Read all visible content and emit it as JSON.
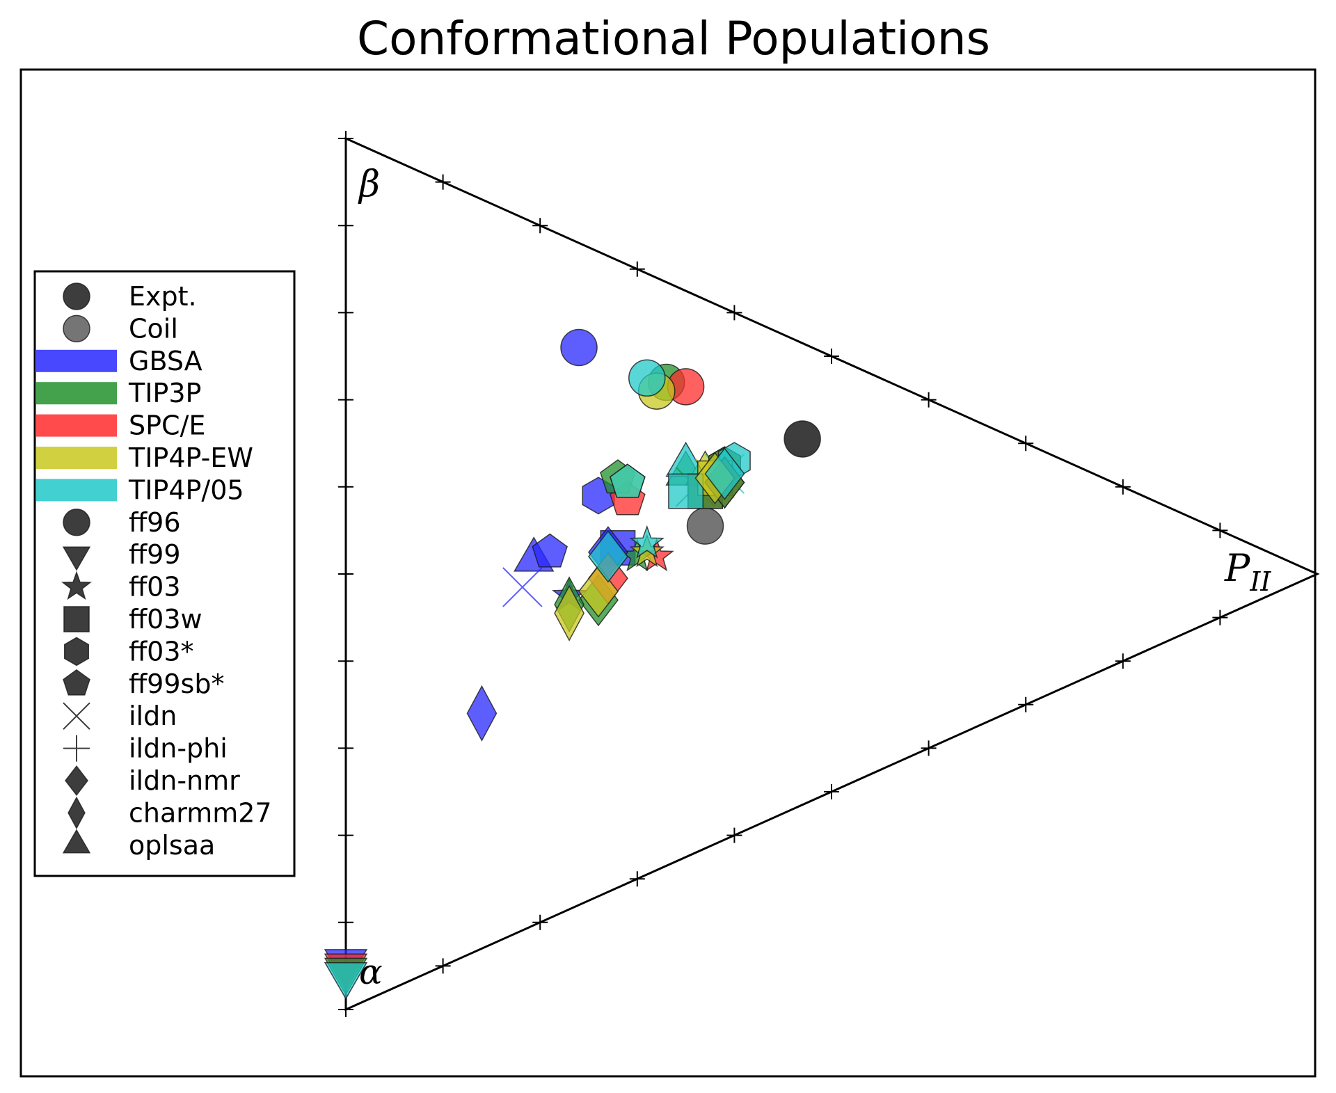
{
  "chart_data": {
    "type": "scatter",
    "subtype": "ternary",
    "title": "Conformational Populations",
    "corners": {
      "beta": "β",
      "alpha": "α",
      "pii": "P",
      "pii_sub": "II"
    },
    "ticks_per_edge": 10,
    "grid": false,
    "legend_position": "left",
    "colors": {
      "expt": "#333333",
      "coil": "#6e6e6e",
      "GBSA": "#2828ff",
      "TIP3P": "#22922c",
      "SPC/E": "#ff2b2b",
      "TIP4P-EW": "#c8c820",
      "TIP4P/05": "#22c8c8"
    },
    "legend": [
      {
        "label": "Expt.",
        "kind": "marker",
        "marker": "circle",
        "color": "#333333"
      },
      {
        "label": "Coil",
        "kind": "marker",
        "marker": "circle",
        "color": "#6e6e6e"
      },
      {
        "label": "GBSA",
        "kind": "patch",
        "color": "#2828ff"
      },
      {
        "label": "TIP3P",
        "kind": "patch",
        "color": "#22922c"
      },
      {
        "label": "SPC/E",
        "kind": "patch",
        "color": "#ff2b2b"
      },
      {
        "label": "TIP4P-EW",
        "kind": "patch",
        "color": "#c8c820"
      },
      {
        "label": "TIP4P/05",
        "kind": "patch",
        "color": "#22c8c8"
      },
      {
        "label": "ff96",
        "kind": "marker",
        "marker": "circle",
        "color": "#333333"
      },
      {
        "label": "ff99",
        "kind": "marker",
        "marker": "triangle-down",
        "color": "#333333"
      },
      {
        "label": "ff03",
        "kind": "marker",
        "marker": "star",
        "color": "#333333"
      },
      {
        "label": "ff03w",
        "kind": "marker",
        "marker": "square",
        "color": "#333333"
      },
      {
        "label": "ff03*",
        "kind": "marker",
        "marker": "hexagon",
        "color": "#333333"
      },
      {
        "label": "ff99sb*",
        "kind": "marker",
        "marker": "pentagon",
        "color": "#333333"
      },
      {
        "label": "ildn",
        "kind": "marker",
        "marker": "x",
        "color": "#333333"
      },
      {
        "label": "ildn-phi",
        "kind": "marker",
        "marker": "plus",
        "color": "#333333"
      },
      {
        "label": "ildn-nmr",
        "kind": "marker",
        "marker": "diamond",
        "color": "#333333"
      },
      {
        "label": "charmm27",
        "kind": "marker",
        "marker": "thin-diamond",
        "color": "#333333"
      },
      {
        "label": "oplsaa",
        "kind": "marker",
        "marker": "triangle-up",
        "color": "#333333"
      }
    ],
    "points": [
      {
        "kind": "expt",
        "marker": "circle",
        "solvent": "expt",
        "beta": 0.42,
        "alpha": 0.11,
        "pii": 0.47
      },
      {
        "kind": "coil",
        "marker": "circle",
        "solvent": "coil",
        "beta": 0.37,
        "alpha": 0.26,
        "pii": 0.37
      },
      {
        "marker": "circle",
        "solvent": "GBSA",
        "beta": 0.64,
        "alpha": 0.12,
        "pii": 0.24
      },
      {
        "marker": "circle",
        "solvent": "TIP3P",
        "beta": 0.555,
        "alpha": 0.115,
        "pii": 0.33
      },
      {
        "marker": "circle",
        "solvent": "SPC/E",
        "beta": 0.54,
        "alpha": 0.11,
        "pii": 0.35
      },
      {
        "marker": "circle",
        "solvent": "TIP4P-EW",
        "beta": 0.55,
        "alpha": 0.13,
        "pii": 0.32
      },
      {
        "marker": "circle",
        "solvent": "TIP4P/05",
        "beta": 0.57,
        "alpha": 0.12,
        "pii": 0.31
      },
      {
        "marker": "triangle-down",
        "solvent": "GBSA",
        "beta": 0.055,
        "alpha": 0.945,
        "pii": 0.0
      },
      {
        "marker": "triangle-down",
        "solvent": "SPC/E",
        "beta": 0.05,
        "alpha": 0.95,
        "pii": 0.0
      },
      {
        "marker": "triangle-down",
        "solvent": "TIP3P",
        "beta": 0.045,
        "alpha": 0.955,
        "pii": 0.0
      },
      {
        "marker": "triangle-down",
        "solvent": "TIP4P/05",
        "beta": 0.04,
        "alpha": 0.96,
        "pii": 0.0
      },
      {
        "marker": "triangle-up",
        "solvent": "GBSA",
        "beta": 0.52,
        "alpha": 0.48,
        "pii": 0.24
      },
      {
        "marker": "triangle-up",
        "solvent": "TIP3P",
        "beta": 0.44,
        "alpha": 0.21,
        "pii": 0.35
      },
      {
        "marker": "triangle-up",
        "solvent": "TIP4P-EW",
        "beta": 0.43,
        "alpha": 0.2,
        "pii": 0.37
      },
      {
        "marker": "triangle-up",
        "solvent": "TIP4P/05",
        "beta": 0.45,
        "alpha": 0.2,
        "pii": 0.35
      },
      {
        "marker": "x",
        "solvent": "GBSA",
        "beta": 0.52,
        "alpha": 0.56,
        "pii": 0.24
      },
      {
        "marker": "x",
        "solvent": "TIP3P",
        "beta": 0.42,
        "alpha": 0.22,
        "pii": 0.36
      },
      {
        "marker": "x",
        "solvent": "TIP4P-EW",
        "beta": 0.42,
        "alpha": 0.2,
        "pii": 0.38
      },
      {
        "marker": "x",
        "solvent": "TIP4P/05",
        "beta": 0.42,
        "alpha": 0.19,
        "pii": 0.39
      },
      {
        "marker": "hexagon",
        "solvent": "GBSA",
        "beta": 0.46,
        "alpha": 0.28,
        "pii": 0.26
      },
      {
        "marker": "hexagon",
        "solvent": "SPC/E",
        "beta": 0.43,
        "alpha": 0.18,
        "pii": 0.39
      },
      {
        "marker": "hexagon",
        "solvent": "TIP3P",
        "beta": 0.43,
        "alpha": 0.18,
        "pii": 0.39
      },
      {
        "marker": "hexagon",
        "solvent": "TIP4P/05",
        "beta": 0.43,
        "alpha": 0.17,
        "pii": 0.4
      },
      {
        "marker": "pentagon",
        "solvent": "GBSA",
        "beta": 0.42,
        "alpha": 0.37,
        "pii": 0.21
      },
      {
        "marker": "pentagon",
        "solvent": "SPC/E",
        "beta": 0.44,
        "alpha": 0.27,
        "pii": 0.29
      },
      {
        "marker": "pentagon",
        "solvent": "TIP3P",
        "beta": 0.47,
        "alpha": 0.25,
        "pii": 0.28
      },
      {
        "marker": "pentagon",
        "solvent": "TIP4P-EW",
        "beta": 0.46,
        "alpha": 0.25,
        "pii": 0.29
      },
      {
        "marker": "pentagon",
        "solvent": "TIP4P/05",
        "beta": 0.46,
        "alpha": 0.25,
        "pii": 0.29
      },
      {
        "marker": "square",
        "solvent": "GBSA",
        "beta": 0.39,
        "alpha": 0.33,
        "pii": 0.28
      },
      {
        "marker": "square",
        "solvent": "SPC/E",
        "beta": 0.41,
        "alpha": 0.22,
        "pii": 0.37
      },
      {
        "marker": "square",
        "solvent": "TIP3P",
        "beta": 0.41,
        "alpha": 0.22,
        "pii": 0.37
      },
      {
        "marker": "square",
        "solvent": "TIP4P-EW",
        "beta": 0.42,
        "alpha": 0.2,
        "pii": 0.38
      },
      {
        "marker": "square",
        "solvent": "TIP4P/05",
        "beta": 0.42,
        "alpha": 0.23,
        "pii": 0.35
      },
      {
        "marker": "star",
        "solvent": "GBSA",
        "beta": 0.36,
        "alpha": 0.41,
        "pii": 0.23
      },
      {
        "marker": "star",
        "solvent": "SPC/E",
        "beta": 0.36,
        "alpha": 0.32,
        "pii": 0.32
      },
      {
        "marker": "star",
        "solvent": "TIP3P",
        "beta": 0.37,
        "alpha": 0.33,
        "pii": 0.3
      },
      {
        "marker": "star",
        "solvent": "TIP4P-EW",
        "beta": 0.37,
        "alpha": 0.32,
        "pii": 0.31
      },
      {
        "marker": "star",
        "solvent": "TIP4P/05",
        "beta": 0.38,
        "alpha": 0.31,
        "pii": 0.31
      },
      {
        "marker": "diamond",
        "solvent": "GBSA",
        "beta": 0.39,
        "alpha": 0.34,
        "pii": 0.27
      },
      {
        "marker": "diamond",
        "solvent": "TIP3P",
        "beta": 0.34,
        "alpha": 0.4,
        "pii": 0.26
      },
      {
        "marker": "diamond",
        "solvent": "SPC/E",
        "beta": 0.36,
        "alpha": 0.37,
        "pii": 0.27
      },
      {
        "marker": "diamond",
        "solvent": "TIP4P-EW",
        "beta": 0.35,
        "alpha": 0.39,
        "pii": 0.26
      },
      {
        "marker": "diamond",
        "solvent": "TIP4P/05",
        "beta": 0.385,
        "alpha": 0.345,
        "pii": 0.27
      },
      {
        "marker": "diamond",
        "solvent": "SPC/E",
        "beta": 0.41,
        "alpha": 0.2,
        "pii": 0.39
      },
      {
        "marker": "diamond",
        "solvent": "TIP3P",
        "beta": 0.41,
        "alpha": 0.2,
        "pii": 0.39
      },
      {
        "marker": "diamond",
        "solvent": "TIP4P-EW",
        "beta": 0.42,
        "alpha": 0.2,
        "pii": 0.38
      },
      {
        "marker": "diamond",
        "solvent": "TIP4P/05",
        "beta": 0.42,
        "alpha": 0.19,
        "pii": 0.39
      },
      {
        "marker": "thin-diamond",
        "solvent": "GBSA",
        "beta": 0.27,
        "alpha": 0.59,
        "pii": 0.14
      },
      {
        "marker": "thin-diamond",
        "solvent": "TIP3P",
        "beta": 0.35,
        "alpha": 0.42,
        "pii": 0.23
      },
      {
        "marker": "thin-diamond",
        "solvent": "TIP4P-EW",
        "beta": 0.34,
        "alpha": 0.43,
        "pii": 0.23
      }
    ]
  }
}
